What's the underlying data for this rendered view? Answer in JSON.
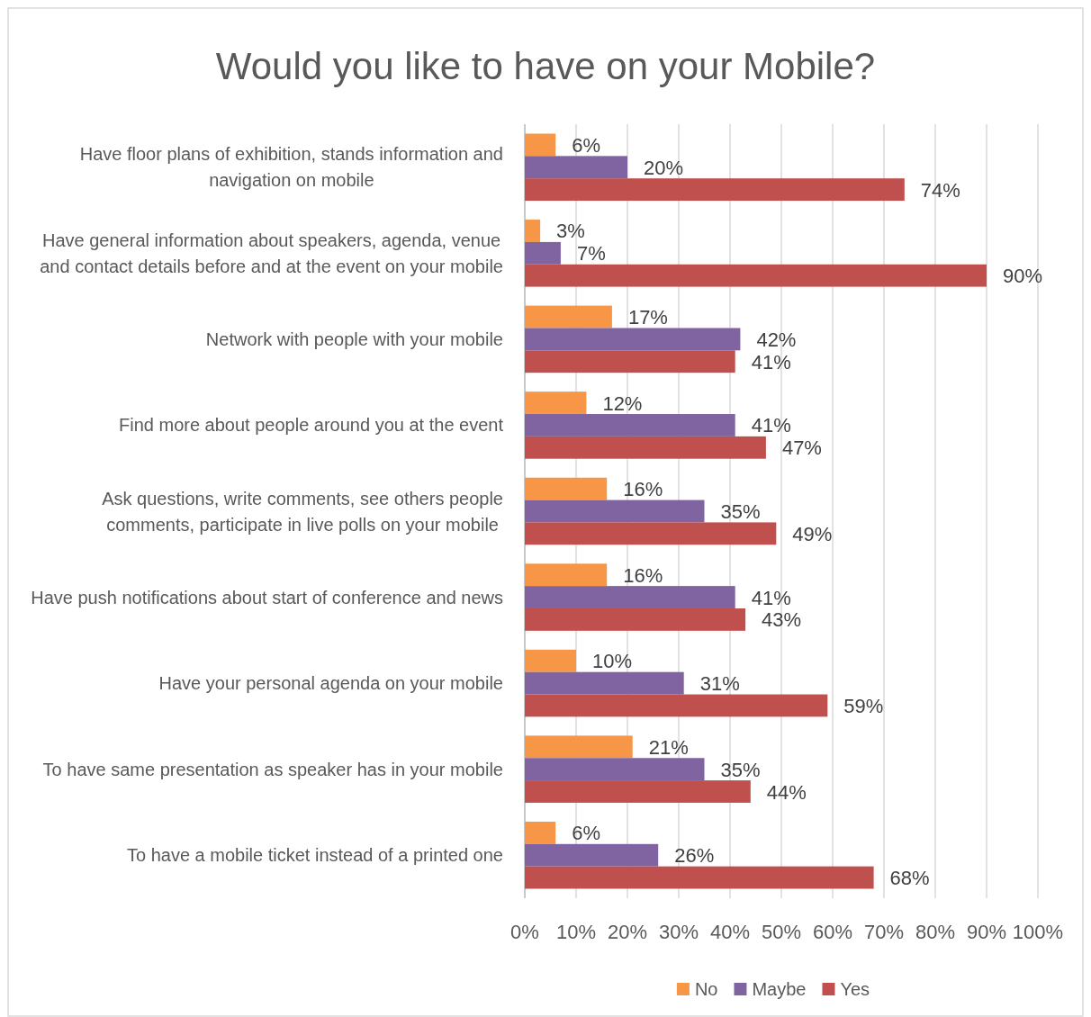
{
  "chart_data": {
    "type": "bar",
    "orientation": "horizontal",
    "title": "Would you like to have on your Mobile?",
    "categories": [
      "Have floor plans of exhibition, stands information and navigation on mobile",
      "Have general information about speakers, agenda, venue and contact details before and at the event on your mobile",
      "Network with people with your mobile",
      "Find more about people around you at the event",
      "Ask questions, write comments, see others people comments, participate in live polls on your mobile",
      "Have push notifications about start of conference and news",
      "Have your personal agenda on your mobile",
      "To have same presentation as speaker has in your mobile",
      "To have a mobile ticket instead of a printed one"
    ],
    "series": [
      {
        "name": "No",
        "color": "#f79646",
        "values": [
          6,
          3,
          17,
          12,
          16,
          16,
          10,
          21,
          6
        ],
        "value_labels": [
          "6%",
          "3%",
          "17%",
          "12%",
          "16%",
          "16%",
          "10%",
          "21%",
          "6%"
        ]
      },
      {
        "name": "Maybe",
        "color": "#8064a2",
        "values": [
          20,
          7,
          42,
          41,
          35,
          41,
          31,
          35,
          26
        ],
        "value_labels": [
          "20%",
          "7%",
          "42%",
          "41%",
          "35%",
          "41%",
          "31%",
          "35%",
          "26%"
        ]
      },
      {
        "name": "Yes",
        "color": "#c0504d",
        "values": [
          74,
          90,
          41,
          47,
          49,
          43,
          59,
          44,
          68
        ],
        "value_labels": [
          "74%",
          "90%",
          "41%",
          "47%",
          "49%",
          "43%",
          "59%",
          "44%",
          "68%"
        ]
      }
    ],
    "xlim": [
      0,
      100
    ],
    "xticks": [
      {
        "value": 0,
        "label": "0%"
      },
      {
        "value": 10,
        "label": "10%"
      },
      {
        "value": 20,
        "label": "20%"
      },
      {
        "value": 30,
        "label": "30%"
      },
      {
        "value": 40,
        "label": "40%"
      },
      {
        "value": 50,
        "label": "50%"
      },
      {
        "value": 60,
        "label": "60%"
      },
      {
        "value": 70,
        "label": "70%"
      },
      {
        "value": 80,
        "label": "80%"
      },
      {
        "value": 90,
        "label": "90%"
      },
      {
        "value": 100,
        "label": "100%"
      }
    ],
    "grid": "x",
    "legend": "bottom"
  }
}
